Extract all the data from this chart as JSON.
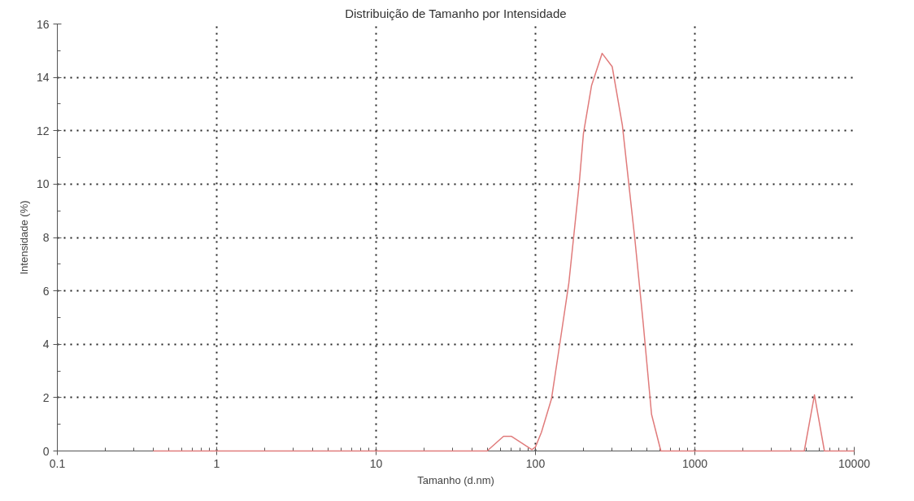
{
  "chart_data": {
    "type": "line",
    "title": "Distribuição de Tamanho por Intensidade",
    "xlabel": "Tamanho (d.nm)",
    "ylabel": "Intensidade (%)",
    "log": "x",
    "xlim": [
      0.1,
      10000
    ],
    "xticks": [
      {
        "value": 0.1,
        "label": "0.1"
      },
      1,
      10,
      100,
      1000,
      10000
    ],
    "ylim": [
      0,
      16
    ],
    "yticks": [
      0,
      2,
      4,
      6,
      8,
      10,
      12,
      14,
      16
    ],
    "grid": true,
    "line_style": "solid",
    "marker": "none",
    "series": [
      {
        "color": "#e07b7b",
        "x": [
          0.4,
          49.7,
          63,
          70.5,
          95,
          100,
          109,
          126,
          142,
          162,
          188,
          200,
          225,
          262,
          303,
          351,
          421,
          474,
          535,
          612,
          4860,
          5630,
          6500,
          10000
        ],
        "values": [
          0,
          0,
          0.55,
          0.55,
          0.05,
          0.15,
          0.7,
          1.95,
          4.0,
          6.3,
          10.0,
          11.9,
          13.7,
          14.9,
          14.4,
          12.2,
          7.9,
          4.8,
          1.37,
          0,
          0,
          2.1,
          0,
          0
        ]
      }
    ]
  }
}
